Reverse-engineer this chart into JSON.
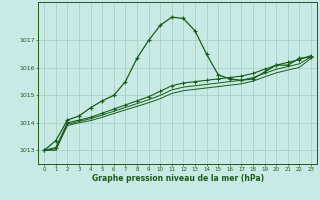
{
  "bg_color": "#c8eae4",
  "grid_color": "#a0ccc4",
  "line_color": "#1a5c1a",
  "xlabel": "Graphe pression niveau de la mer (hPa)",
  "xlim": [
    -0.5,
    23.5
  ],
  "ylim": [
    1012.5,
    1018.4
  ],
  "yticks": [
    1013,
    1014,
    1015,
    1016,
    1017
  ],
  "xticks": [
    0,
    1,
    2,
    3,
    4,
    5,
    6,
    7,
    8,
    9,
    10,
    11,
    12,
    13,
    14,
    15,
    16,
    17,
    18,
    19,
    20,
    21,
    22,
    23
  ],
  "series1_x": [
    0,
    1,
    2,
    3,
    4,
    5,
    6,
    7,
    8,
    9,
    10,
    11,
    12,
    13,
    14,
    15,
    16,
    17,
    18,
    19,
    20,
    21,
    22,
    23
  ],
  "series1_y": [
    1013.0,
    1013.35,
    1014.1,
    1014.25,
    1014.55,
    1014.8,
    1015.0,
    1015.5,
    1016.35,
    1017.0,
    1017.55,
    1017.85,
    1017.8,
    1017.35,
    1016.5,
    1015.75,
    1015.6,
    1015.55,
    1015.6,
    1015.85,
    1016.1,
    1016.1,
    1016.35,
    1016.4
  ],
  "series2_x": [
    0,
    1,
    2,
    3,
    4,
    5,
    6,
    7,
    8,
    9,
    10,
    11,
    12,
    13,
    14,
    15,
    16,
    17,
    18,
    19,
    20,
    21,
    22,
    23
  ],
  "series2_y": [
    1013.0,
    1013.1,
    1014.0,
    1014.1,
    1014.2,
    1014.35,
    1014.5,
    1014.65,
    1014.8,
    1014.95,
    1015.15,
    1015.35,
    1015.45,
    1015.5,
    1015.55,
    1015.6,
    1015.65,
    1015.7,
    1015.8,
    1015.95,
    1016.1,
    1016.2,
    1016.3,
    1016.45
  ],
  "series3_x": [
    0,
    1,
    2,
    3,
    4,
    5,
    6,
    7,
    8,
    9,
    10,
    11,
    12,
    13,
    14,
    15,
    16,
    17,
    18,
    19,
    20,
    21,
    22,
    23
  ],
  "series3_y": [
    1013.0,
    1013.05,
    1013.95,
    1014.05,
    1014.15,
    1014.28,
    1014.42,
    1014.56,
    1014.7,
    1014.84,
    1015.0,
    1015.2,
    1015.3,
    1015.35,
    1015.4,
    1015.45,
    1015.5,
    1015.55,
    1015.65,
    1015.8,
    1015.95,
    1016.05,
    1016.15,
    1016.4
  ],
  "series4_x": [
    0,
    1,
    2,
    3,
    4,
    5,
    6,
    7,
    8,
    9,
    10,
    11,
    12,
    13,
    14,
    15,
    16,
    17,
    18,
    19,
    20,
    21,
    22,
    23
  ],
  "series4_y": [
    1013.0,
    1013.0,
    1013.9,
    1014.0,
    1014.08,
    1014.2,
    1014.34,
    1014.47,
    1014.6,
    1014.73,
    1014.88,
    1015.07,
    1015.17,
    1015.22,
    1015.27,
    1015.32,
    1015.37,
    1015.42,
    1015.52,
    1015.67,
    1015.82,
    1015.92,
    1016.02,
    1016.35
  ]
}
